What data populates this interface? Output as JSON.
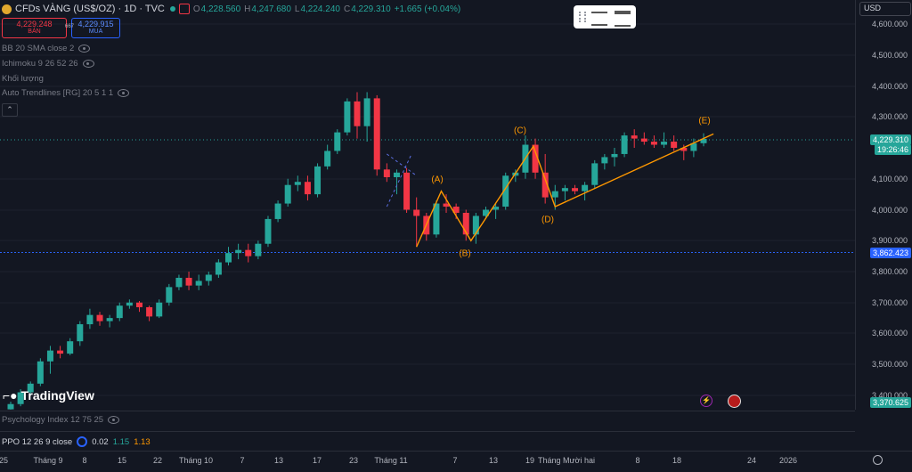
{
  "header": {
    "symbol": "CFDs VÀNG (US$/OZ) · 1D · TVC",
    "o_label": "O",
    "o_val": "4,228.560",
    "h_label": "H",
    "h_val": "4,247.680",
    "l_label": "L",
    "l_val": "4,224.240",
    "c_label": "C",
    "c_val": "4,229.310",
    "change": "+1.665 (+0.04%)"
  },
  "trade": {
    "sell_price": "4,229.248",
    "sell_label": "BÁN",
    "spread": "667",
    "buy_price": "4,229.915",
    "buy_label": "MUA"
  },
  "indicators": [
    {
      "label": "BB 20 SMA close 2"
    },
    {
      "label": "Ichimoku 9 26 52 26"
    },
    {
      "label": "Khối lượng"
    },
    {
      "label": "Auto Trendlines [RG] 20 5 1 1"
    }
  ],
  "currency": "USD",
  "price_axis": [
    "4,600.000",
    "4,500.000",
    "4,400.000",
    "4,300.000",
    "4,100.000",
    "4,000.000",
    "3,900.000",
    "3,800.000",
    "3,700.000",
    "3,600.000",
    "3,500.000",
    "3,400.000"
  ],
  "last_price": "4,229.310",
  "countdown": "19:26:46",
  "hline_price": "3,862.423",
  "low_price": "3,370.625",
  "waves": [
    "(A)",
    "(B)",
    "(C)",
    "(D)",
    "(E)"
  ],
  "logo_text": "TradingView",
  "psych": {
    "label": "Psychology Index 12 75 25"
  },
  "ppo": {
    "label": "PPO 12 26 9 close",
    "v1": "0.02",
    "v2": "1.15",
    "v3": "1.13"
  },
  "x_axis": [
    "25",
    "Tháng 9",
    "8",
    "15",
    "22",
    "Tháng 10",
    "7",
    "13",
    "17",
    "23",
    "Tháng 11",
    "7",
    "13",
    "19",
    "Tháng Mười hai",
    "8",
    "18",
    "24",
    "2026"
  ],
  "colors": {
    "up": "#26a69a",
    "down": "#f23645",
    "wave": "#ff9800",
    "bg": "#131722"
  },
  "chart_data": {
    "type": "candlestick",
    "y_unit": "USD",
    "ylim": [
      3340,
      4660
    ],
    "ohlc": [
      [
        3355,
        3380,
        3345,
        3372
      ],
      [
        3372,
        3420,
        3365,
        3410
      ],
      [
        3410,
        3445,
        3400,
        3438
      ],
      [
        3438,
        3520,
        3430,
        3510
      ],
      [
        3510,
        3560,
        3470,
        3545
      ],
      [
        3545,
        3560,
        3520,
        3535
      ],
      [
        3535,
        3585,
        3530,
        3575
      ],
      [
        3575,
        3640,
        3560,
        3630
      ],
      [
        3630,
        3680,
        3615,
        3660
      ],
      [
        3660,
        3670,
        3625,
        3640
      ],
      [
        3640,
        3660,
        3620,
        3650
      ],
      [
        3650,
        3700,
        3640,
        3690
      ],
      [
        3690,
        3710,
        3680,
        3700
      ],
      [
        3700,
        3705,
        3670,
        3685
      ],
      [
        3685,
        3690,
        3640,
        3655
      ],
      [
        3655,
        3710,
        3650,
        3700
      ],
      [
        3700,
        3760,
        3690,
        3750
      ],
      [
        3750,
        3790,
        3740,
        3780
      ],
      [
        3780,
        3800,
        3740,
        3755
      ],
      [
        3755,
        3790,
        3740,
        3770
      ],
      [
        3770,
        3800,
        3755,
        3790
      ],
      [
        3790,
        3840,
        3780,
        3830
      ],
      [
        3830,
        3880,
        3820,
        3860
      ],
      [
        3860,
        3890,
        3840,
        3870
      ],
      [
        3870,
        3890,
        3830,
        3850
      ],
      [
        3850,
        3900,
        3840,
        3890
      ],
      [
        3890,
        3980,
        3880,
        3970
      ],
      [
        3970,
        4030,
        3960,
        4020
      ],
      [
        4020,
        4100,
        4010,
        4080
      ],
      [
        4080,
        4110,
        4060,
        4090
      ],
      [
        4090,
        4110,
        4030,
        4050
      ],
      [
        4050,
        4150,
        4040,
        4140
      ],
      [
        4140,
        4210,
        4130,
        4190
      ],
      [
        4190,
        4260,
        4180,
        4250
      ],
      [
        4250,
        4360,
        4240,
        4350
      ],
      [
        4350,
        4380,
        4230,
        4270
      ],
      [
        4270,
        4380,
        4220,
        4360
      ],
      [
        4360,
        4370,
        4110,
        4130
      ],
      [
        4130,
        4150,
        4090,
        4105
      ],
      [
        4105,
        4130,
        4050,
        4120
      ],
      [
        4120,
        4135,
        3990,
        4000
      ],
      [
        4000,
        4040,
        3880,
        3980
      ],
      [
        3980,
        3990,
        3900,
        3920
      ],
      [
        3920,
        4030,
        3910,
        4020
      ],
      [
        4020,
        4050,
        3990,
        4010
      ],
      [
        4010,
        4020,
        3970,
        3990
      ],
      [
        3990,
        4000,
        3900,
        3920
      ],
      [
        3920,
        3990,
        3890,
        3980
      ],
      [
        3980,
        4010,
        3970,
        4000
      ],
      [
        4000,
        4020,
        3970,
        4010
      ],
      [
        4010,
        4120,
        4000,
        4110
      ],
      [
        4110,
        4130,
        4090,
        4120
      ],
      [
        4120,
        4240,
        4100,
        4210
      ],
      [
        4210,
        4230,
        4100,
        4120
      ],
      [
        4120,
        4180,
        4020,
        4040
      ],
      [
        4040,
        4080,
        4000,
        4060
      ],
      [
        4060,
        4080,
        4030,
        4070
      ],
      [
        4070,
        4080,
        4050,
        4060
      ],
      [
        4060,
        4090,
        4030,
        4080
      ],
      [
        4080,
        4160,
        4070,
        4150
      ],
      [
        4150,
        4180,
        4130,
        4170
      ],
      [
        4170,
        4200,
        4140,
        4180
      ],
      [
        4180,
        4250,
        4170,
        4240
      ],
      [
        4240,
        4260,
        4200,
        4230
      ],
      [
        4230,
        4250,
        4210,
        4220
      ],
      [
        4220,
        4240,
        4200,
        4210
      ],
      [
        4210,
        4250,
        4200,
        4220
      ],
      [
        4220,
        4240,
        4190,
        4200
      ],
      [
        4200,
        4210,
        4160,
        4190
      ],
      [
        4190,
        4230,
        4170,
        4215
      ],
      [
        4215,
        4247,
        4205,
        4229
      ]
    ]
  }
}
